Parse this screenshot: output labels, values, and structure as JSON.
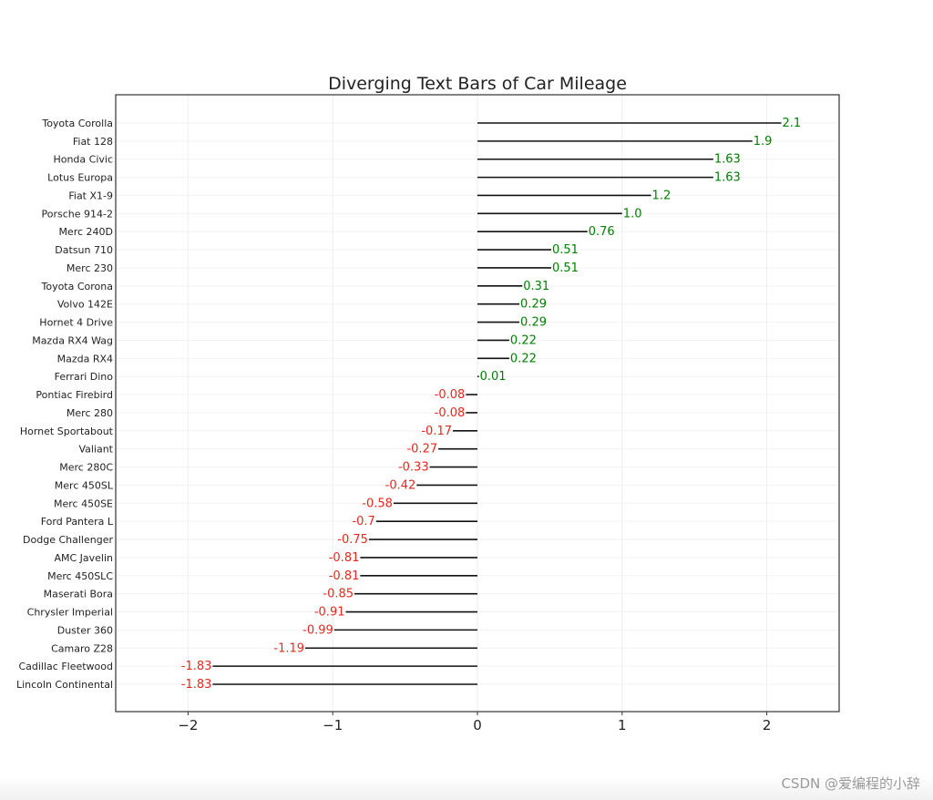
{
  "chart_data": {
    "type": "bar",
    "orientation": "horizontal",
    "title": "Diverging Text Bars of Car Mileage",
    "xlabel": "",
    "ylabel": "",
    "xlim": [
      -2.5,
      2.5
    ],
    "xticks": [
      -2,
      -1,
      0,
      1,
      2
    ],
    "xtick_labels": [
      "−2",
      "−1",
      "0",
      "1",
      "2"
    ],
    "grid": true,
    "positive_color": "#008000",
    "negative_color": "#e8281e",
    "line_color": "#111111",
    "categories": [
      "Toyota Corolla",
      "Fiat 128",
      "Honda Civic",
      "Lotus Europa",
      "Fiat X1-9",
      "Porsche 914-2",
      "Merc 240D",
      "Datsun 710",
      "Merc 230",
      "Toyota Corona",
      "Volvo 142E",
      "Hornet 4 Drive",
      "Mazda RX4 Wag",
      "Mazda RX4",
      "Ferrari Dino",
      "Pontiac Firebird",
      "Merc 280",
      "Hornet Sportabout",
      "Valiant",
      "Merc 280C",
      "Merc 450SL",
      "Merc 450SE",
      "Ford Pantera L",
      "Dodge Challenger",
      "AMC Javelin",
      "Merc 450SLC",
      "Maserati Bora",
      "Chrysler Imperial",
      "Duster 360",
      "Camaro Z28",
      "Cadillac Fleetwood",
      "Lincoln Continental"
    ],
    "values": [
      2.1,
      1.9,
      1.63,
      1.63,
      1.2,
      1.0,
      0.76,
      0.51,
      0.51,
      0.31,
      0.29,
      0.29,
      0.22,
      0.22,
      0.01,
      -0.08,
      -0.08,
      -0.17,
      -0.27,
      -0.33,
      -0.42,
      -0.58,
      -0.7,
      -0.75,
      -0.81,
      -0.81,
      -0.85,
      -0.91,
      -0.99,
      -1.19,
      -1.83,
      -1.83
    ],
    "value_labels": [
      "2.1",
      "1.9",
      "1.63",
      "1.63",
      "1.2",
      "1.0",
      "0.76",
      "0.51",
      "0.51",
      "0.31",
      "0.29",
      "0.29",
      "0.22",
      "0.22",
      "0.01",
      "-0.08",
      "-0.08",
      "-0.17",
      "-0.27",
      "-0.33",
      "-0.42",
      "-0.58",
      "-0.7",
      "-0.75",
      "-0.81",
      "-0.81",
      "-0.85",
      "-0.91",
      "-0.99",
      "-1.19",
      "-1.83",
      "-1.83"
    ]
  },
  "watermark": "CSDN @爱编程的小辞"
}
